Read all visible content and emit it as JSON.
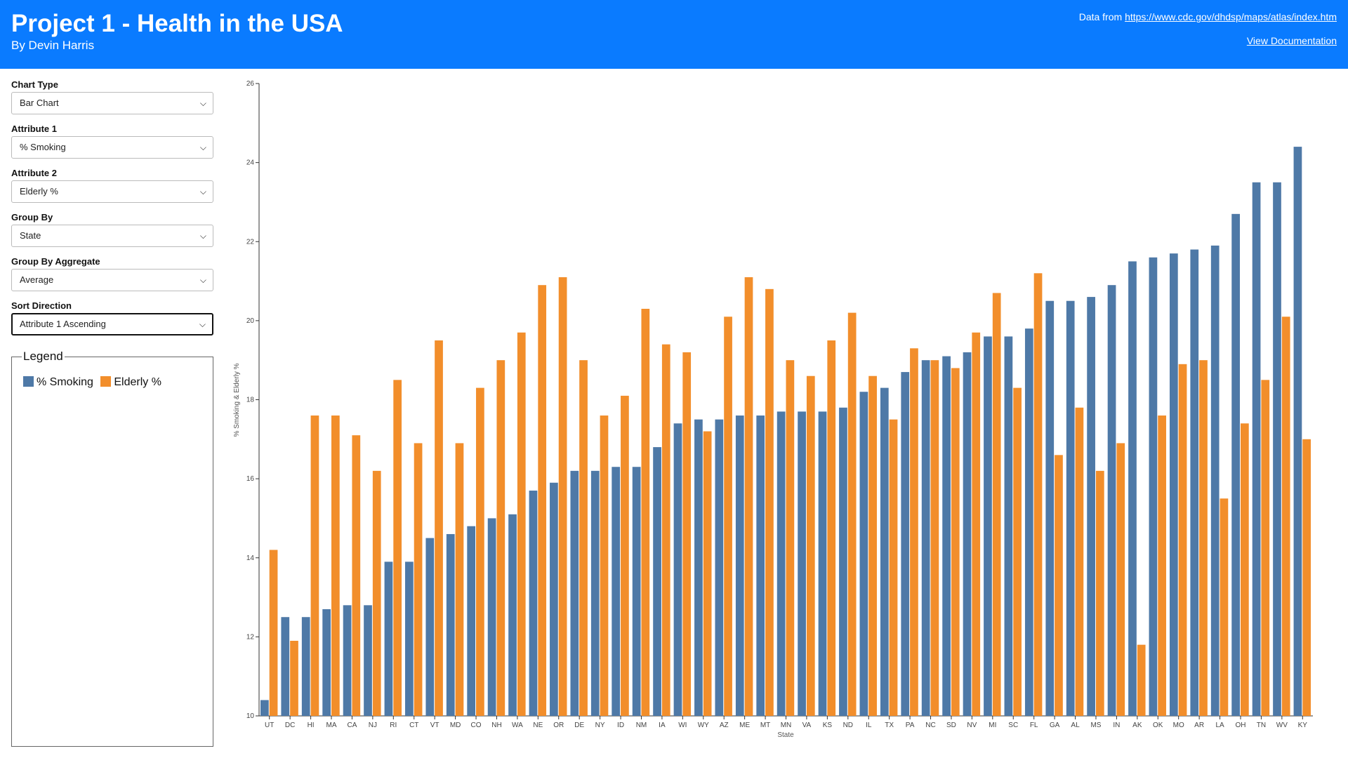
{
  "header": {
    "title": "Project 1 - Health in the USA",
    "subtitle": "By Devin Harris",
    "source_prefix": "Data from ",
    "source_url": "https://www.cdc.gov/dhdsp/maps/atlas/index.htm",
    "doc_link": "View Documentation"
  },
  "controls": {
    "chart_type": {
      "label": "Chart Type",
      "value": "Bar Chart"
    },
    "attribute1": {
      "label": "Attribute 1",
      "value": "% Smoking"
    },
    "attribute2": {
      "label": "Attribute 2",
      "value": "Elderly %"
    },
    "group_by": {
      "label": "Group By",
      "value": "State"
    },
    "group_by_aggregate": {
      "label": "Group By Aggregate",
      "value": "Average"
    },
    "sort_direction": {
      "label": "Sort Direction",
      "value": "Attribute 1 Ascending"
    }
  },
  "legend": {
    "title": "Legend",
    "items": [
      {
        "label": "% Smoking",
        "color": "#4e79a7"
      },
      {
        "label": "Elderly %",
        "color": "#f28e2b"
      }
    ]
  },
  "chart_data": {
    "type": "bar",
    "xlabel": "State",
    "ylabel": "% Smoking & Elderly %",
    "ylim": [
      10,
      26
    ],
    "yticks": [
      10,
      12,
      14,
      16,
      18,
      20,
      22,
      24,
      26
    ],
    "categories": [
      "UT",
      "DC",
      "HI",
      "MA",
      "CA",
      "NJ",
      "RI",
      "CT",
      "VT",
      "MD",
      "CO",
      "NH",
      "WA",
      "NE",
      "OR",
      "DE",
      "NY",
      "ID",
      "NM",
      "IA",
      "WI",
      "WY",
      "AZ",
      "ME",
      "MT",
      "MN",
      "VA",
      "KS",
      "ND",
      "IL",
      "TX",
      "PA",
      "NC",
      "SD",
      "NV",
      "MI",
      "SC",
      "FL",
      "GA",
      "AL",
      "MS",
      "IN",
      "AK",
      "OK",
      "MO",
      "AR",
      "LA",
      "OH",
      "TN",
      "WV",
      "KY"
    ],
    "series": [
      {
        "name": "% Smoking",
        "color": "#4e79a7",
        "values": [
          10.4,
          12.5,
          12.5,
          12.7,
          12.8,
          12.8,
          13.9,
          13.9,
          14.5,
          14.6,
          14.8,
          15.0,
          15.1,
          15.7,
          15.9,
          16.2,
          16.2,
          16.3,
          16.3,
          16.8,
          17.4,
          17.5,
          17.5,
          17.6,
          17.6,
          17.7,
          17.7,
          17.7,
          17.8,
          18.2,
          18.3,
          18.7,
          19.0,
          19.1,
          19.2,
          19.6,
          19.6,
          19.8,
          20.5,
          20.5,
          20.6,
          20.9,
          21.5,
          21.6,
          21.7,
          21.8,
          21.9,
          22.7,
          23.5,
          23.5,
          24.4
        ]
      },
      {
        "name": "Elderly %",
        "color": "#f28e2b",
        "values": [
          14.2,
          11.9,
          17.6,
          17.6,
          17.1,
          16.2,
          18.5,
          16.9,
          19.5,
          16.9,
          18.3,
          19.0,
          19.7,
          20.9,
          21.1,
          19.0,
          17.6,
          18.1,
          20.3,
          19.4,
          19.2,
          17.2,
          20.1,
          21.1,
          20.8,
          19.0,
          18.6,
          19.5,
          20.2,
          18.6,
          17.5,
          19.3,
          19.0,
          18.8,
          19.7,
          20.7,
          18.3,
          21.2,
          16.6,
          17.8,
          16.2,
          16.9,
          11.8,
          17.6,
          18.9,
          19.0,
          15.5,
          17.4,
          18.5,
          20.1,
          17.0
        ]
      }
    ]
  }
}
